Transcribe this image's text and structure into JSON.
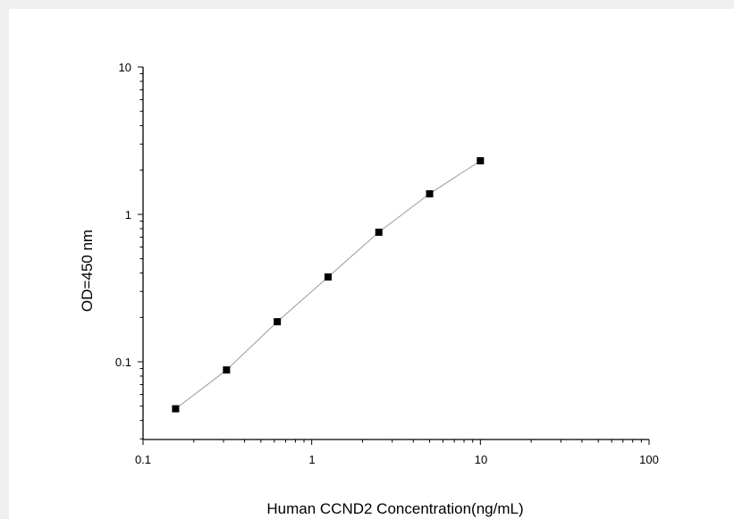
{
  "chart_data": {
    "type": "scatter",
    "title": "",
    "xlabel": "Human CCND2 Concentration(ng/mL)",
    "ylabel": "OD=450 nm",
    "x_scale": "log",
    "y_scale": "log",
    "xlim": [
      0.1,
      100
    ],
    "ylim": [
      0.03,
      10
    ],
    "x_ticks": [
      {
        "value": 0.1,
        "label": "0.1"
      },
      {
        "value": 1,
        "label": "1"
      },
      {
        "value": 10,
        "label": "10"
      },
      {
        "value": 100,
        "label": "100"
      }
    ],
    "y_ticks": [
      {
        "value": 0.1,
        "label": "0.1"
      },
      {
        "value": 1,
        "label": "1"
      },
      {
        "value": 10,
        "label": "10"
      }
    ],
    "grid": false,
    "legend": "none",
    "series": [
      {
        "x": [
          0.156,
          0.3125,
          0.625,
          1.25,
          2.5,
          5,
          10
        ],
        "y": [
          0.048,
          0.088,
          0.187,
          0.376,
          0.757,
          1.38,
          2.31
        ],
        "marker": "square",
        "marker_color": "#000000",
        "line_color": "#9a9a9a"
      }
    ]
  }
}
